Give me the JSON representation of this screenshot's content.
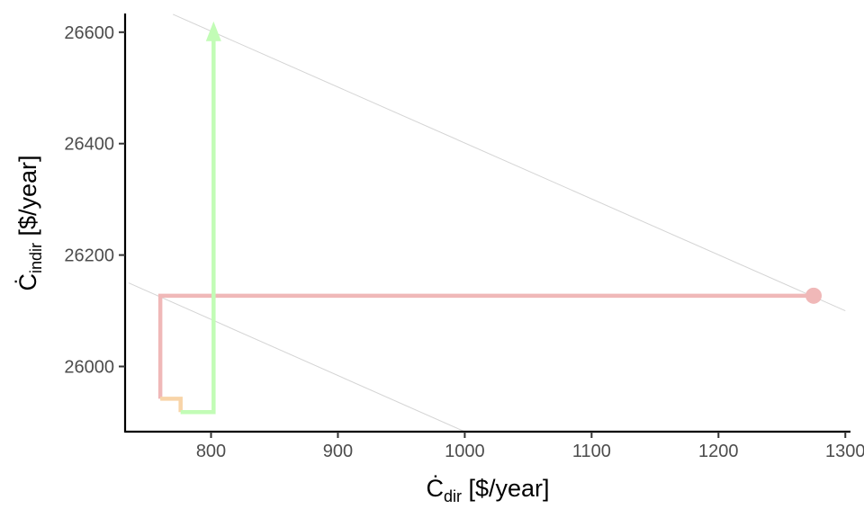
{
  "chart_data": {
    "type": "line",
    "xlabel": {
      "symbol": "Ċ",
      "subscript": "dir",
      "unit": " [$/year]"
    },
    "ylabel": {
      "symbol": "Ċ",
      "subscript": "indir",
      "unit": " [$/year]"
    },
    "xlim": [
      735,
      1300
    ],
    "ylim": [
      25880,
      26630
    ],
    "x_ticks": [
      800,
      900,
      1000,
      1100,
      1200,
      1300
    ],
    "x_tick_labels": [
      "800",
      "900",
      "1000",
      "1100",
      "1200",
      "1300"
    ],
    "y_ticks": [
      26000,
      26200,
      26400,
      26600
    ],
    "y_tick_labels": [
      "26000",
      "26200",
      "26400",
      "26600"
    ],
    "grid": false,
    "reference_lines": [
      {
        "color": "#d4d4d4",
        "points": [
          [
            770,
            26632
          ],
          [
            1300,
            26100
          ]
        ]
      },
      {
        "color": "#d4d4d4",
        "points": [
          [
            735,
            26150
          ],
          [
            1000,
            25883
          ]
        ]
      }
    ],
    "series": [
      {
        "color": "#f0b8b8",
        "points": [
          [
            1275,
            26127
          ],
          [
            760,
            26127
          ],
          [
            760,
            25942
          ]
        ],
        "start_marker": "circle"
      },
      {
        "color": "#f8d4a8",
        "points": [
          [
            760,
            25942
          ],
          [
            776,
            25942
          ],
          [
            776,
            25918
          ]
        ]
      },
      {
        "color": "#c2fcb6",
        "points": [
          [
            776,
            25918
          ],
          [
            802,
            25918
          ],
          [
            802,
            26600
          ]
        ],
        "end_marker": "arrow"
      }
    ]
  }
}
